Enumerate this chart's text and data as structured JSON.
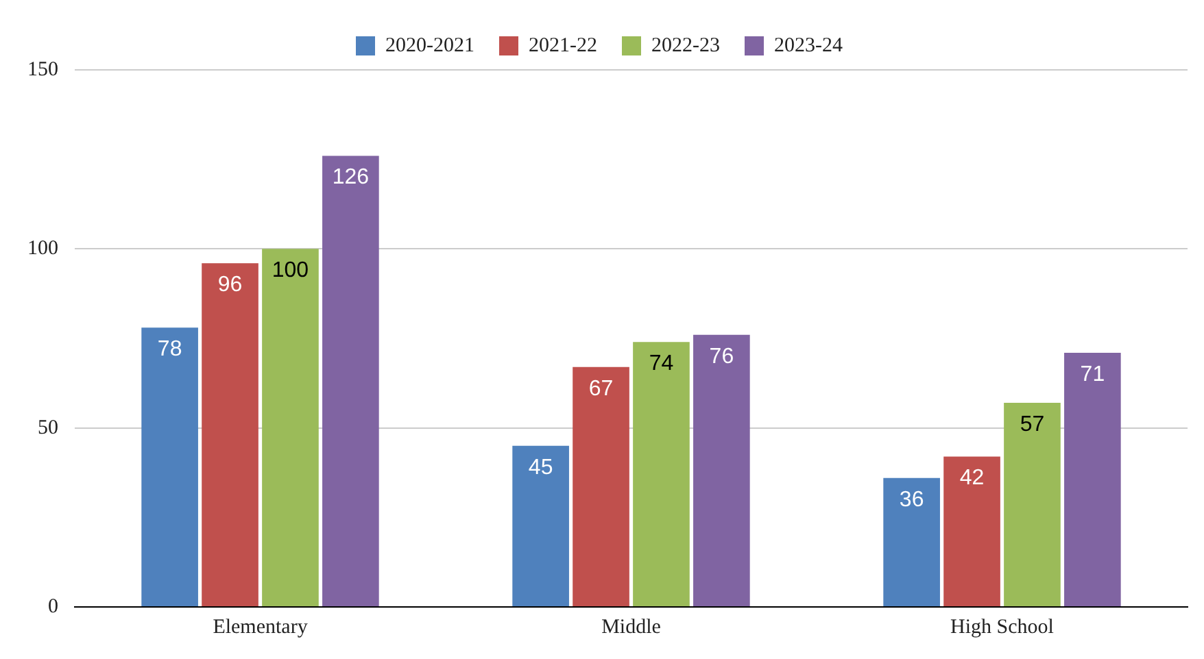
{
  "chart_data": {
    "type": "bar",
    "categories": [
      "Elementary",
      "Middle",
      "High School"
    ],
    "series": [
      {
        "name": "2020-2021",
        "color": "#4f81bd",
        "values": [
          78,
          45,
          36
        ]
      },
      {
        "name": "2021-22",
        "color": "#c0504d",
        "values": [
          96,
          67,
          42
        ]
      },
      {
        "name": "2022-23",
        "color": "#9bbb59",
        "values": [
          100,
          74,
          57
        ]
      },
      {
        "name": "2023-24",
        "color": "#8064a2",
        "values": [
          126,
          76,
          71
        ]
      }
    ],
    "ylim": [
      0,
      150
    ],
    "yticks": [
      0,
      50,
      100,
      150
    ],
    "grid": "y",
    "legend": "top",
    "data_labels": true
  }
}
